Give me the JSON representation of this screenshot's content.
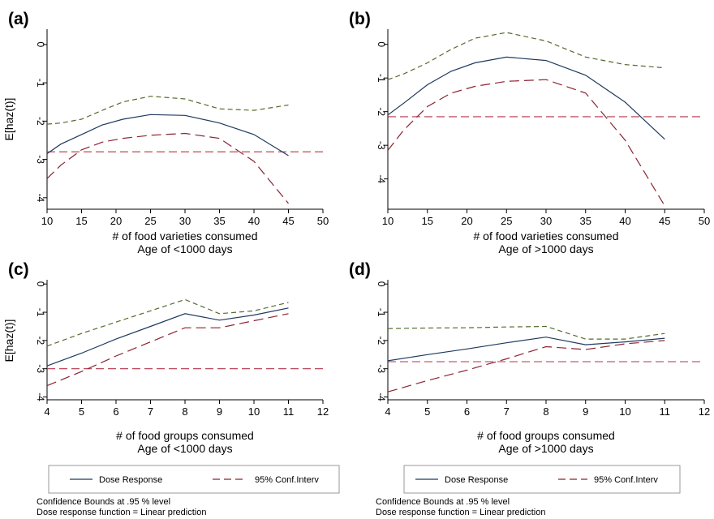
{
  "colors": {
    "dose": "#1f3a5f",
    "upper": "#556b2f",
    "lower": "#8b2331",
    "ref": "#b3364a",
    "axis": "#000000"
  },
  "chart_data": [
    {
      "type": "line",
      "panel_label": "(a)",
      "ylabel": "E[haz(t)]",
      "xlabel": "# of food varieties consumed",
      "subtitle": "Age of <1000 days",
      "xlim": [
        10,
        50
      ],
      "ylim": [
        -4.3,
        0.4
      ],
      "xticks": [
        10,
        15,
        20,
        25,
        30,
        35,
        40,
        45,
        50
      ],
      "yticks": [
        0,
        -1,
        -2,
        -3,
        -4
      ],
      "ref_y": -2.8,
      "series": [
        {
          "role": "dose",
          "x": [
            10,
            12,
            15,
            18,
            21,
            25,
            30,
            35,
            40,
            45
          ],
          "y": [
            -2.85,
            -2.6,
            -2.35,
            -2.1,
            -1.95,
            -1.83,
            -1.85,
            -2.05,
            -2.35,
            -2.9
          ]
        },
        {
          "role": "upper",
          "x": [
            10,
            12,
            15,
            18,
            21,
            25,
            30,
            35,
            40,
            45
          ],
          "y": [
            -2.08,
            -2.05,
            -1.95,
            -1.72,
            -1.5,
            -1.35,
            -1.42,
            -1.68,
            -1.72,
            -1.58
          ]
        },
        {
          "role": "lower",
          "x": [
            10,
            12,
            15,
            18,
            21,
            25,
            30,
            35,
            40,
            45
          ],
          "y": [
            -3.5,
            -3.15,
            -2.75,
            -2.55,
            -2.45,
            -2.37,
            -2.32,
            -2.45,
            -3.05,
            -4.15
          ]
        }
      ]
    },
    {
      "type": "line",
      "panel_label": "(b)",
      "ylabel": "",
      "xlabel": "# of food varieties consumed",
      "subtitle": "Age of >1000 days",
      "xlim": [
        10,
        50
      ],
      "ylim": [
        -4.9,
        0.45
      ],
      "xticks": [
        10,
        15,
        20,
        25,
        30,
        35,
        40,
        45,
        50
      ],
      "yticks": [
        0,
        -1,
        -2,
        -3,
        -4
      ],
      "ref_y": -2.15,
      "series": [
        {
          "role": "dose",
          "x": [
            10,
            12,
            15,
            18,
            21,
            25,
            30,
            35,
            40,
            45
          ],
          "y": [
            -2.1,
            -1.75,
            -1.2,
            -0.8,
            -0.55,
            -0.38,
            -0.48,
            -0.92,
            -1.72,
            -2.82
          ]
        },
        {
          "role": "upper",
          "x": [
            10,
            12,
            15,
            18,
            21,
            25,
            30,
            35,
            40,
            45
          ],
          "y": [
            -1.05,
            -0.88,
            -0.55,
            -0.15,
            0.18,
            0.35,
            0.1,
            -0.38,
            -0.6,
            -0.7
          ]
        },
        {
          "role": "lower",
          "x": [
            10,
            12,
            15,
            18,
            21,
            25,
            30,
            35,
            40,
            45
          ],
          "y": [
            -3.15,
            -2.55,
            -1.85,
            -1.45,
            -1.25,
            -1.1,
            -1.05,
            -1.45,
            -2.85,
            -4.8
          ]
        }
      ]
    },
    {
      "type": "line",
      "panel_label": "(c)",
      "ylabel": "E[haz(t)]",
      "xlabel": "# of food groups consumed",
      "subtitle": "Age of <1000 days",
      "xlim": [
        4,
        12
      ],
      "ylim": [
        -4.1,
        0.15
      ],
      "xticks": [
        4,
        5,
        6,
        7,
        8,
        9,
        10,
        11,
        12
      ],
      "yticks": [
        0,
        -1,
        -2,
        -3,
        -4
      ],
      "ref_y": -3.0,
      "series": [
        {
          "role": "dose",
          "x": [
            4,
            5,
            6,
            7,
            8,
            9,
            10,
            11
          ],
          "y": [
            -2.9,
            -2.45,
            -1.95,
            -1.5,
            -1.05,
            -1.28,
            -1.1,
            -0.85
          ]
        },
        {
          "role": "upper",
          "x": [
            4,
            5,
            6,
            7,
            8,
            9,
            10,
            11
          ],
          "y": [
            -2.2,
            -1.75,
            -1.35,
            -0.95,
            -0.55,
            -1.05,
            -0.95,
            -0.65
          ]
        },
        {
          "role": "lower",
          "x": [
            4,
            5,
            6,
            7,
            8,
            9,
            10,
            11
          ],
          "y": [
            -3.6,
            -3.1,
            -2.55,
            -2.05,
            -1.55,
            -1.55,
            -1.3,
            -1.05
          ]
        }
      ]
    },
    {
      "type": "line",
      "panel_label": "(d)",
      "ylabel": "",
      "xlabel": "# of food groups consumed",
      "subtitle": "Age of >1000 days",
      "xlim": [
        4,
        12
      ],
      "ylim": [
        -4.1,
        0.15
      ],
      "xticks": [
        4,
        5,
        6,
        7,
        8,
        9,
        10,
        11,
        12
      ],
      "yticks": [
        0,
        -1,
        -2,
        -3,
        -4
      ],
      "ref_y": -2.75,
      "series": [
        {
          "role": "dose",
          "x": [
            4,
            5,
            6,
            7,
            8,
            9,
            10,
            11
          ],
          "y": [
            -2.72,
            -2.5,
            -2.3,
            -2.08,
            -1.88,
            -2.15,
            -2.05,
            -1.92
          ]
        },
        {
          "role": "upper",
          "x": [
            4,
            5,
            6,
            7,
            8,
            9,
            10,
            11
          ],
          "y": [
            -1.58,
            -1.56,
            -1.55,
            -1.52,
            -1.5,
            -1.95,
            -1.95,
            -1.75
          ]
        },
        {
          "role": "lower",
          "x": [
            4,
            5,
            6,
            7,
            8,
            9,
            10,
            11
          ],
          "y": [
            -3.82,
            -3.42,
            -3.05,
            -2.65,
            -2.22,
            -2.32,
            -2.12,
            -2.0
          ]
        }
      ]
    }
  ],
  "legends": [
    {
      "dose_label": "Dose Response",
      "ci_label": "95% Conf.Interv"
    },
    {
      "dose_label": "Dose Response",
      "ci_label": "95% Conf.Interv"
    }
  ],
  "notes": [
    {
      "line1": "Confidence Bounds at .95 % level",
      "line2": "Dose response function = Linear prediction"
    },
    {
      "line1": "Confidence Bounds at .95 % level",
      "line2": "Dose response function = Linear prediction"
    }
  ]
}
